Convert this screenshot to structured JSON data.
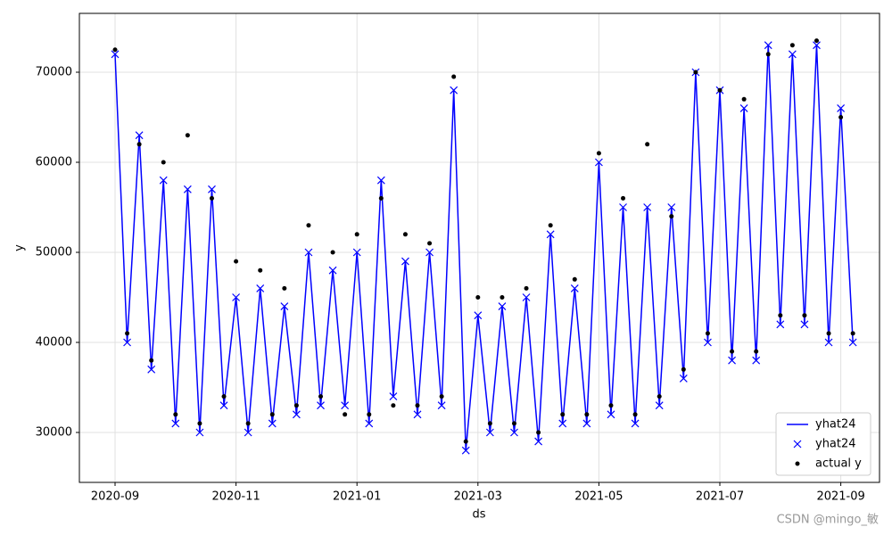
{
  "chart_data": {
    "type": "line",
    "xlabel": "ds",
    "ylabel": "y",
    "x": [
      0,
      0.2,
      0.4,
      0.6,
      0.8,
      1.0,
      1.2,
      1.4,
      1.6,
      1.8,
      2.0,
      2.2,
      2.4,
      2.6,
      2.8,
      3.0,
      3.2,
      3.4,
      3.6,
      3.8,
      4.0,
      4.2,
      4.4,
      4.6,
      4.8,
      5.0,
      5.2,
      5.4,
      5.6,
      5.8,
      6.0,
      6.2,
      6.4,
      6.6,
      6.8,
      7.0,
      7.2,
      7.4,
      7.6,
      7.8,
      8.0,
      8.2,
      8.4,
      8.6,
      8.8,
      9.0,
      9.2,
      9.4,
      9.6,
      9.8,
      10.0,
      10.2,
      10.4,
      10.6,
      10.8,
      11.0,
      11.2,
      11.4,
      11.6,
      11.8,
      12.0,
      12.2
    ],
    "series": [
      {
        "name": "yhat24",
        "style": "line",
        "color": "#0000ff",
        "values": [
          72000,
          40000,
          63000,
          37000,
          58000,
          31000,
          57000,
          30000,
          57000,
          33000,
          45000,
          30000,
          46000,
          31000,
          44000,
          32000,
          50000,
          33000,
          48000,
          33000,
          50000,
          31000,
          58000,
          34000,
          49000,
          32000,
          50000,
          33000,
          68000,
          28000,
          43000,
          30000,
          44000,
          30000,
          45000,
          29000,
          52000,
          31000,
          46000,
          31000,
          60000,
          32000,
          55000,
          31000,
          55000,
          33000,
          55000,
          36000,
          70000,
          40000,
          68000,
          38000,
          66000,
          38000,
          73000,
          42000,
          72000,
          42000,
          73000,
          40000,
          66000,
          40000
        ]
      },
      {
        "name": "yhat24",
        "style": "x",
        "color": "#0000ff",
        "values": [
          72000,
          40000,
          63000,
          37000,
          58000,
          31000,
          57000,
          30000,
          57000,
          33000,
          45000,
          30000,
          46000,
          31000,
          44000,
          32000,
          50000,
          33000,
          48000,
          33000,
          50000,
          31000,
          58000,
          34000,
          49000,
          32000,
          50000,
          33000,
          68000,
          28000,
          43000,
          30000,
          44000,
          30000,
          45000,
          29000,
          52000,
          31000,
          46000,
          31000,
          60000,
          32000,
          55000,
          31000,
          55000,
          33000,
          55000,
          36000,
          70000,
          40000,
          68000,
          38000,
          66000,
          38000,
          73000,
          42000,
          72000,
          42000,
          73000,
          40000,
          66000,
          40000
        ]
      },
      {
        "name": "actual y",
        "style": "dot",
        "color": "#000000",
        "values": [
          72500,
          41000,
          62000,
          38000,
          60000,
          32000,
          63000,
          31000,
          56000,
          34000,
          49000,
          31000,
          48000,
          32000,
          46000,
          33000,
          53000,
          34000,
          50000,
          32000,
          52000,
          32000,
          56000,
          33000,
          52000,
          33000,
          51000,
          34000,
          69500,
          29000,
          45000,
          31000,
          45000,
          31000,
          46000,
          30000,
          53000,
          32000,
          47000,
          32000,
          61000,
          33000,
          56000,
          32000,
          62000,
          34000,
          54000,
          37000,
          70000,
          41000,
          68000,
          39000,
          67000,
          39000,
          72000,
          43000,
          73000,
          43000,
          73500,
          41000,
          65000,
          41000
        ]
      }
    ],
    "xlim": [
      -0.59,
      12.64
    ],
    "xticks": [
      {
        "value": 0,
        "label": "2020-09"
      },
      {
        "value": 2,
        "label": "2020-11"
      },
      {
        "value": 4,
        "label": "2021-01"
      },
      {
        "value": 6,
        "label": "2021-03"
      },
      {
        "value": 8,
        "label": "2021-05"
      },
      {
        "value": 10,
        "label": "2021-07"
      },
      {
        "value": 12,
        "label": "2021-09"
      }
    ],
    "ylim": [
      24455,
      76535
    ],
    "yticks": [
      30000,
      40000,
      50000,
      60000,
      70000
    ],
    "grid": true,
    "legend": "lower right",
    "watermark": "CSDN @mingo_敏"
  }
}
